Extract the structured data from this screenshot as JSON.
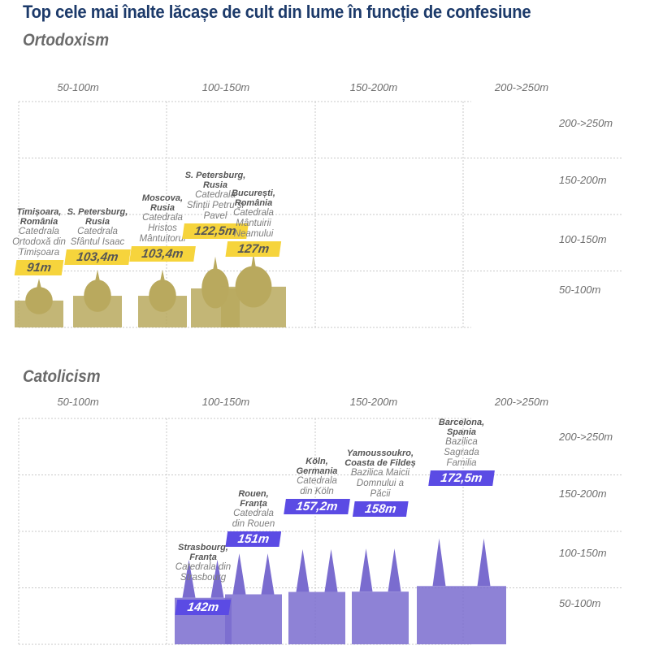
{
  "title": "Top cele mai înalte lăcașe de cult din lume în funcție de confesiune",
  "colors": {
    "title": "#1c3a6a",
    "orthodox_badge": "#f6d43c",
    "orthodox_building": "#b9a95e",
    "catholic_badge": "#5b4be4",
    "catholic_building": "#7a6ccf",
    "grid": "#c8c8c8"
  },
  "chart_data": [
    {
      "type": "bar",
      "title": "Ortodoxism",
      "unit": "m",
      "column_labels": [
        "50-100m",
        "100-150m",
        "150-200m",
        "200->250m"
      ],
      "row_labels": [
        "200->250m",
        "150-200m",
        "100-150m",
        "50-100m"
      ],
      "ylim": [
        0,
        250
      ],
      "grid": true,
      "items": [
        {
          "city": "Timișoara, România",
          "city_lines": [
            "Timișoara,",
            "România"
          ],
          "name": "Catedrala Ortodoxă din Timișoara",
          "name_lines": [
            "Catedrala",
            "Ortodoxă din",
            "Timișoara"
          ],
          "height_label": "91m",
          "value": 91
        },
        {
          "city": "S. Petersburg, Rusia",
          "city_lines": [
            "S. Petersburg,",
            "Rusia"
          ],
          "name": "Catedrala Sfântul Isaac",
          "name_lines": [
            "Catedrala",
            "Sfântul Isaac"
          ],
          "height_label": "103,4m",
          "value": 103.4
        },
        {
          "city": "Moscova, Rusia",
          "city_lines": [
            "Moscova,",
            "Rusia"
          ],
          "name": "Catedrala Hristos Mântuitorul",
          "name_lines": [
            "Catedrala",
            "Hristos",
            "Mântuitorul"
          ],
          "height_label": "103,4m",
          "value": 103.4
        },
        {
          "city": "S. Petersburg, Rusia",
          "city_lines": [
            "S. Petersburg,",
            "Rusia"
          ],
          "name": "Catedrala Sfinții Petru și Pavel",
          "name_lines": [
            "Catedrala",
            "Sfinții Petru și",
            "Pavel"
          ],
          "height_label": "122,5m",
          "value": 122.5
        },
        {
          "city": "București, România",
          "city_lines": [
            "București,",
            "România"
          ],
          "name": "Catedrala Mântuirii Neamului",
          "name_lines": [
            "Catedrala",
            "Mântuirii",
            "Neamului"
          ],
          "height_label": "127m",
          "value": 127
        }
      ]
    },
    {
      "type": "bar",
      "title": "Catolicism",
      "unit": "m",
      "column_labels": [
        "50-100m",
        "100-150m",
        "150-200m",
        "200->250m"
      ],
      "row_labels": [
        "200->250m",
        "150-200m",
        "100-150m",
        "50-100m"
      ],
      "ylim": [
        0,
        250
      ],
      "grid": true,
      "items": [
        {
          "city": "Strasbourg, Franța",
          "city_lines": [
            "Strasbourg,",
            "Franța"
          ],
          "name": "Catedrala din Strasbourg",
          "name_lines": [
            "Catedrala din",
            "Strasbourg"
          ],
          "height_label": "142m",
          "value": 142
        },
        {
          "city": "Rouen, Franța",
          "city_lines": [
            "Rouen,",
            "Franța"
          ],
          "name": "Catedrala din Rouen",
          "name_lines": [
            "Catedrala",
            "din Rouen"
          ],
          "height_label": "151m",
          "value": 151
        },
        {
          "city": "Köln, Germania",
          "city_lines": [
            "Köln,",
            "Germania"
          ],
          "name": "Catedrala din Köln",
          "name_lines": [
            "Catedrala",
            "din Köln"
          ],
          "height_label": "157,2m",
          "value": 157.2
        },
        {
          "city": "Yamoussoukro, Coasta de Fildeș",
          "city_lines": [
            "Yamoussoukro,",
            "Coasta de Fildeș"
          ],
          "name": "Bazilica Maicii Domnului a Păcii",
          "name_lines": [
            "Bazilica Maicii",
            "Domnului a",
            "Păcii"
          ],
          "height_label": "158m",
          "value": 158
        },
        {
          "city": "Barcelona, Spania",
          "city_lines": [
            "Barcelona,",
            "Spania"
          ],
          "name": "Bazilica Sagrada Familia",
          "name_lines": [
            "Bazilica",
            "Sagrada",
            "Familia"
          ],
          "height_label": "172,5m",
          "value": 172.5
        }
      ]
    }
  ]
}
